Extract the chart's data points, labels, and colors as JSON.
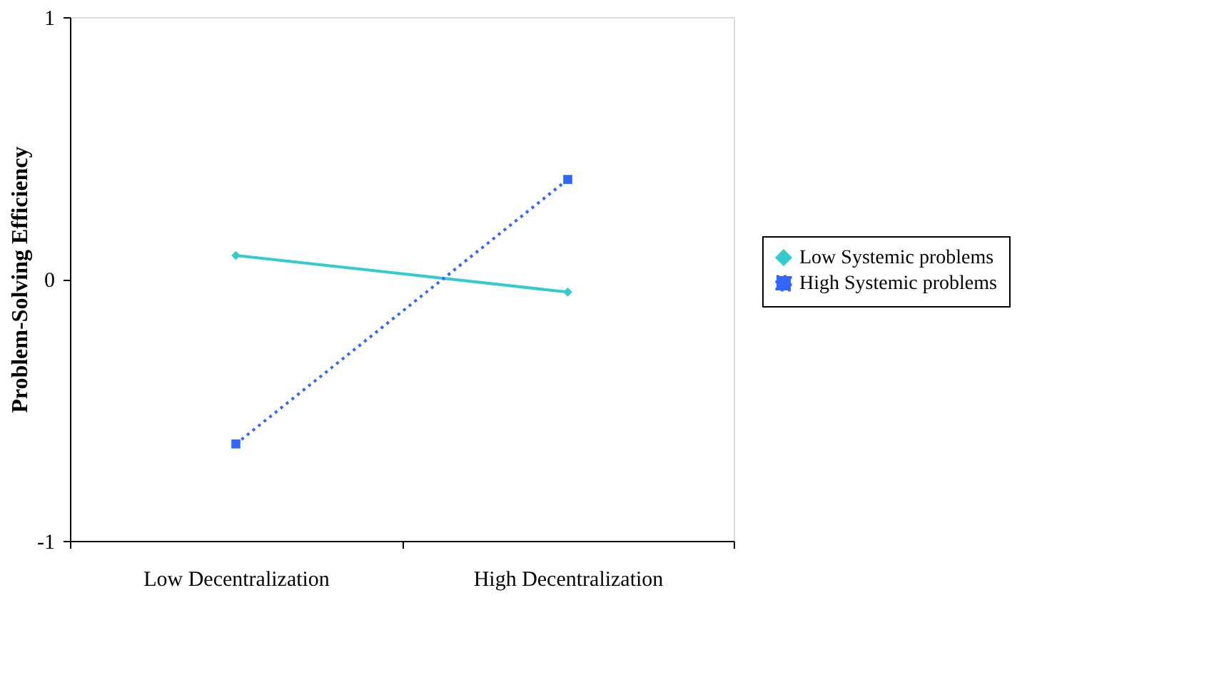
{
  "chart_data": {
    "type": "line",
    "ylabel": "Problem-Solving Efficiency",
    "categories": [
      "Low Decentralization",
      "High Decentralization"
    ],
    "series": [
      {
        "name": "Low Systemic problems",
        "color": "#33cccc",
        "values": [
          0.09,
          -0.05
        ],
        "marker": "diamond",
        "line_style": "solid"
      },
      {
        "name": "High Systemic problems",
        "color": "#3366ff",
        "values": [
          -0.63,
          0.38
        ],
        "marker": "square",
        "line_style": "dotted"
      }
    ],
    "ylim": [
      -1,
      1
    ],
    "yticks": [
      -1,
      0,
      1
    ],
    "grid": false,
    "legend": "right"
  }
}
